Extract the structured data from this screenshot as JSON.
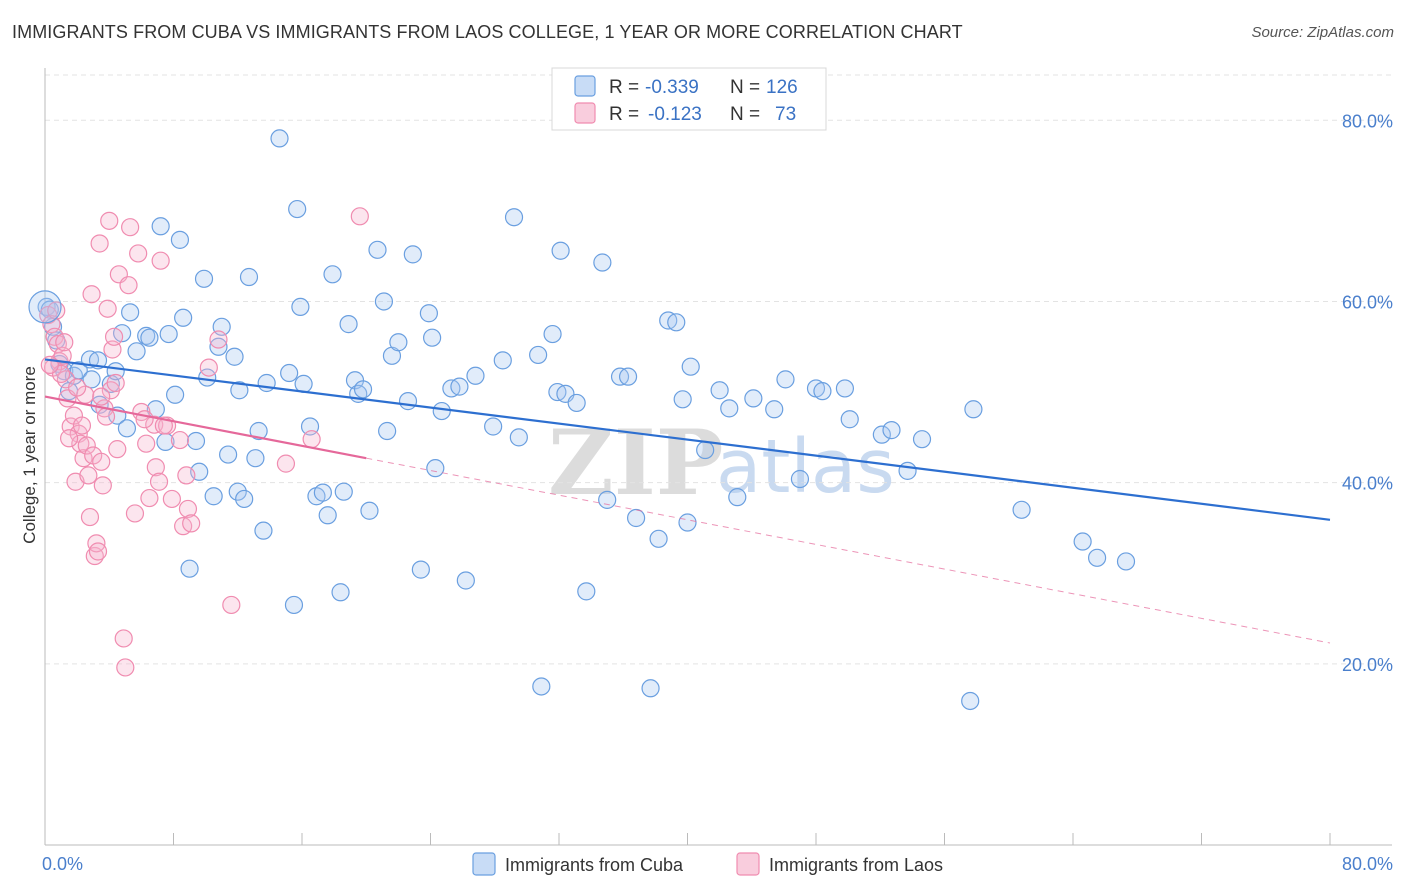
{
  "title": "IMMIGRANTS FROM CUBA VS IMMIGRANTS FROM LAOS COLLEGE, 1 YEAR OR MORE CORRELATION CHART",
  "source": "Source: ZipAtlas.com",
  "watermark": {
    "zip": "ZIP",
    "atlas": "atlas"
  },
  "stats": [
    {
      "r_label": "R =",
      "r_value": "-0.339",
      "n_label": "N =",
      "n_value": "126",
      "color": "#6a9fe0"
    },
    {
      "r_label": "R =",
      "r_value": "-0.123",
      "n_label": "N =",
      "n_value": "73",
      "color": "#f08cb0"
    }
  ],
  "chart_data": {
    "type": "scatter",
    "xlabel": "",
    "ylabel": "College, 1 year or more",
    "xlim": [
      0,
      80
    ],
    "ylim": [
      0,
      85
    ],
    "x_tick_labels": [
      "0.0%",
      "80.0%"
    ],
    "y_ticks": [
      20,
      40,
      60,
      80
    ],
    "y_tick_labels": [
      "20.0%",
      "40.0%",
      "60.0%",
      "80.0%"
    ],
    "grid": true,
    "legend_position": "bottom",
    "series": [
      {
        "name": "Immigrants from Cuba",
        "color": "#6a9fe0",
        "trend": {
          "x": [
            0,
            80
          ],
          "y": [
            53.6,
            35.9
          ],
          "dashed_extension": false
        },
        "points": [
          [
            0.1,
            59.4
          ],
          [
            0.3,
            59.1
          ],
          [
            0.5,
            57.2
          ],
          [
            0.7,
            55.7
          ],
          [
            0.9,
            53.1
          ],
          [
            1.2,
            52.3
          ],
          [
            1.5,
            50.1
          ],
          [
            1.8,
            51.8
          ],
          [
            2.1,
            52.4
          ],
          [
            2.8,
            53.6
          ],
          [
            2.9,
            51.4
          ],
          [
            3.3,
            53.5
          ],
          [
            3.4,
            48.6
          ],
          [
            4.1,
            50.9
          ],
          [
            4.4,
            52.3
          ],
          [
            4.5,
            47.4
          ],
          [
            4.8,
            56.5
          ],
          [
            5.1,
            46.0
          ],
          [
            5.3,
            58.8
          ],
          [
            5.7,
            54.5
          ],
          [
            6.3,
            56.2
          ],
          [
            6.5,
            56.0
          ],
          [
            6.9,
            48.1
          ],
          [
            7.2,
            68.3
          ],
          [
            7.5,
            44.5
          ],
          [
            7.7,
            56.4
          ],
          [
            8.1,
            49.7
          ],
          [
            8.4,
            66.8
          ],
          [
            8.6,
            58.2
          ],
          [
            9.0,
            30.5
          ],
          [
            9.4,
            44.6
          ],
          [
            9.6,
            41.2
          ],
          [
            9.9,
            62.5
          ],
          [
            10.1,
            51.6
          ],
          [
            10.5,
            38.5
          ],
          [
            10.8,
            55.0
          ],
          [
            11.0,
            57.2
          ],
          [
            11.4,
            43.1
          ],
          [
            11.8,
            53.9
          ],
          [
            12.0,
            39.0
          ],
          [
            12.4,
            38.2
          ],
          [
            12.1,
            50.2
          ],
          [
            12.7,
            62.7
          ],
          [
            13.1,
            42.7
          ],
          [
            13.3,
            45.7
          ],
          [
            13.6,
            34.7
          ],
          [
            13.8,
            51.0
          ],
          [
            14.6,
            78.0
          ],
          [
            15.2,
            52.1
          ],
          [
            15.5,
            26.5
          ],
          [
            15.7,
            70.2
          ],
          [
            15.9,
            59.4
          ],
          [
            16.1,
            50.9
          ],
          [
            16.5,
            46.2
          ],
          [
            16.9,
            38.5
          ],
          [
            17.3,
            38.9
          ],
          [
            17.6,
            36.4
          ],
          [
            17.9,
            63.0
          ],
          [
            18.4,
            27.9
          ],
          [
            18.6,
            39.0
          ],
          [
            18.9,
            57.5
          ],
          [
            19.3,
            51.3
          ],
          [
            19.5,
            49.8
          ],
          [
            19.8,
            50.3
          ],
          [
            20.2,
            36.9
          ],
          [
            20.7,
            65.7
          ],
          [
            21.1,
            60.0
          ],
          [
            21.3,
            45.7
          ],
          [
            21.6,
            54.0
          ],
          [
            22.0,
            55.5
          ],
          [
            22.6,
            49.0
          ],
          [
            22.9,
            65.2
          ],
          [
            23.4,
            30.4
          ],
          [
            23.9,
            58.7
          ],
          [
            24.1,
            56.0
          ],
          [
            24.3,
            41.6
          ],
          [
            24.7,
            47.9
          ],
          [
            25.3,
            50.4
          ],
          [
            25.8,
            50.6
          ],
          [
            26.2,
            29.2
          ],
          [
            26.8,
            51.8
          ],
          [
            27.9,
            46.2
          ],
          [
            28.5,
            53.5
          ],
          [
            29.2,
            69.3
          ],
          [
            29.5,
            45.0
          ],
          [
            30.7,
            54.1
          ],
          [
            30.9,
            17.5
          ],
          [
            31.6,
            56.4
          ],
          [
            31.9,
            50.0
          ],
          [
            32.1,
            65.6
          ],
          [
            32.4,
            49.8
          ],
          [
            33.1,
            48.8
          ],
          [
            33.7,
            28.0
          ],
          [
            34.7,
            64.3
          ],
          [
            35.0,
            38.1
          ],
          [
            35.8,
            51.7
          ],
          [
            36.3,
            51.7
          ],
          [
            36.8,
            36.1
          ],
          [
            37.7,
            17.3
          ],
          [
            38.2,
            33.8
          ],
          [
            38.8,
            57.9
          ],
          [
            39.3,
            57.7
          ],
          [
            39.7,
            49.2
          ],
          [
            40.0,
            35.6
          ],
          [
            40.2,
            52.8
          ],
          [
            41.1,
            43.6
          ],
          [
            42.0,
            50.2
          ],
          [
            42.6,
            48.2
          ],
          [
            43.1,
            38.4
          ],
          [
            44.1,
            49.3
          ],
          [
            45.4,
            48.1
          ],
          [
            46.1,
            51.4
          ],
          [
            47.0,
            40.4
          ],
          [
            48.0,
            50.4
          ],
          [
            48.4,
            50.1
          ],
          [
            49.8,
            50.4
          ],
          [
            50.1,
            47.0
          ],
          [
            52.1,
            45.3
          ],
          [
            52.7,
            45.8
          ],
          [
            53.7,
            41.3
          ],
          [
            54.6,
            44.8
          ],
          [
            57.6,
            15.9
          ],
          [
            57.8,
            48.1
          ],
          [
            60.8,
            37.0
          ],
          [
            64.6,
            33.5
          ],
          [
            65.5,
            31.7
          ],
          [
            67.3,
            31.3
          ]
        ]
      },
      {
        "name": "Immigrants from Laos",
        "color": "#f08cb0",
        "trend": {
          "x": [
            0,
            20
          ],
          "y": [
            49.5,
            42.7
          ],
          "dashed_extension": true,
          "dashed_to": [
            80,
            22.3
          ]
        },
        "points": [
          [
            0.2,
            58.5
          ],
          [
            0.4,
            57.5
          ],
          [
            0.6,
            56.1
          ],
          [
            0.8,
            55.3
          ],
          [
            0.9,
            53.4
          ],
          [
            1.1,
            54.0
          ],
          [
            1.3,
            51.4
          ],
          [
            1.4,
            49.3
          ],
          [
            1.6,
            46.2
          ],
          [
            1.8,
            47.4
          ],
          [
            1.9,
            40.1
          ],
          [
            2.1,
            45.4
          ],
          [
            2.2,
            44.3
          ],
          [
            2.4,
            42.7
          ],
          [
            2.5,
            49.7
          ],
          [
            2.6,
            44.1
          ],
          [
            2.7,
            40.8
          ],
          [
            2.8,
            36.2
          ],
          [
            2.9,
            60.8
          ],
          [
            3.0,
            43.0
          ],
          [
            3.1,
            31.9
          ],
          [
            3.2,
            33.3
          ],
          [
            3.3,
            32.4
          ],
          [
            3.4,
            66.4
          ],
          [
            3.5,
            42.3
          ],
          [
            3.6,
            39.7
          ],
          [
            3.7,
            48.2
          ],
          [
            3.8,
            47.3
          ],
          [
            3.9,
            59.2
          ],
          [
            4.0,
            68.9
          ],
          [
            4.1,
            50.2
          ],
          [
            4.2,
            54.7
          ],
          [
            4.3,
            56.1
          ],
          [
            4.4,
            51.0
          ],
          [
            4.5,
            43.7
          ],
          [
            4.6,
            63.0
          ],
          [
            4.9,
            22.8
          ],
          [
            5.0,
            19.6
          ],
          [
            5.3,
            68.2
          ],
          [
            5.6,
            36.6
          ],
          [
            5.8,
            65.3
          ],
          [
            6.0,
            47.8
          ],
          [
            6.3,
            44.3
          ],
          [
            6.5,
            38.3
          ],
          [
            6.8,
            46.4
          ],
          [
            6.9,
            41.7
          ],
          [
            7.1,
            40.1
          ],
          [
            7.2,
            64.5
          ],
          [
            7.6,
            46.3
          ],
          [
            7.9,
            38.2
          ],
          [
            8.4,
            44.7
          ],
          [
            8.6,
            35.2
          ],
          [
            8.9,
            37.1
          ],
          [
            9.1,
            35.5
          ],
          [
            8.8,
            40.8
          ],
          [
            10.2,
            52.7
          ],
          [
            10.8,
            55.8
          ],
          [
            11.6,
            26.5
          ],
          [
            15.0,
            42.1
          ],
          [
            16.6,
            44.8
          ],
          [
            19.6,
            69.4
          ],
          [
            0.5,
            52.7
          ],
          [
            1.0,
            52.0
          ],
          [
            1.5,
            44.9
          ],
          [
            2.3,
            46.3
          ],
          [
            3.5,
            49.5
          ],
          [
            0.7,
            59.0
          ],
          [
            1.2,
            55.5
          ],
          [
            2.0,
            50.5
          ],
          [
            0.3,
            53.0
          ],
          [
            5.2,
            61.8
          ],
          [
            6.2,
            47.0
          ],
          [
            7.4,
            46.3
          ]
        ]
      }
    ]
  },
  "legend": [
    {
      "label": "Immigrants from Cuba",
      "color": "#6a9fe0"
    },
    {
      "label": "Immigrants from Laos",
      "color": "#f08cb0"
    }
  ]
}
